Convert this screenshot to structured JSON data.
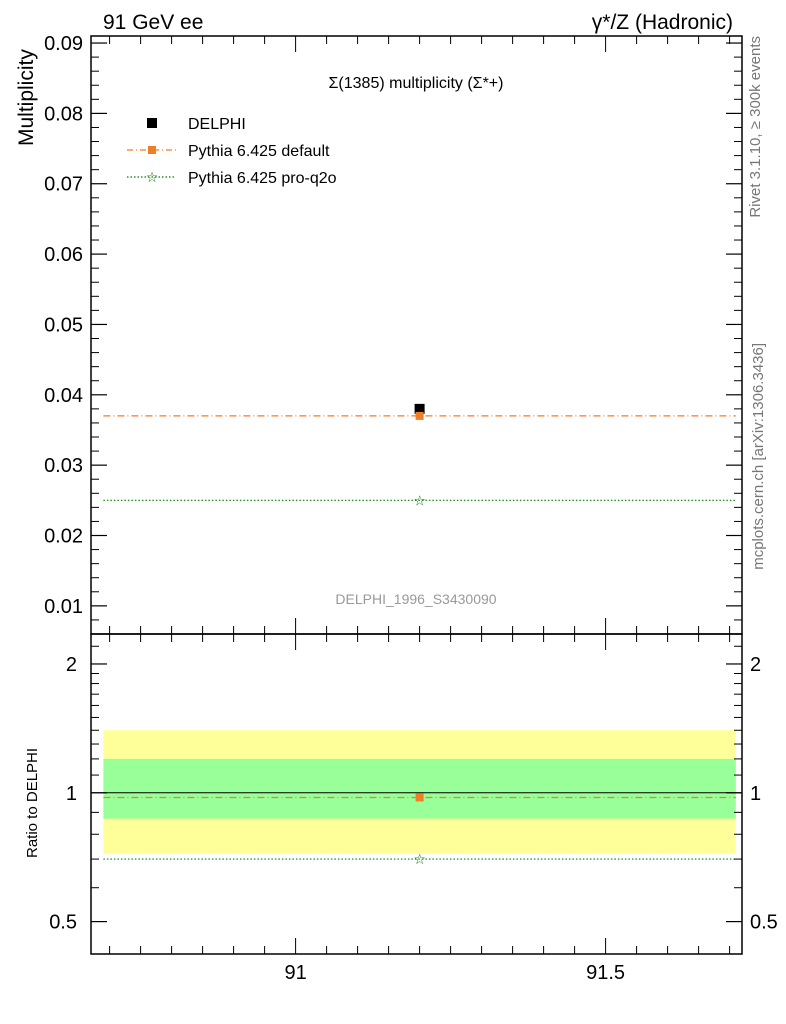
{
  "header": {
    "left": "91 GeV ee",
    "right": "γ*/Z (Hadronic)"
  },
  "side_labels": {
    "rivet": "Rivet 3.1.10, ≥ 300k events",
    "mcplots": "mcplots.cern.ch [arXiv:1306.3436]"
  },
  "colors": {
    "data": "#000000",
    "default": "#f07e26",
    "proq2o": "#008000",
    "band_inner": "#99ff99",
    "band_outer": "#ffff99"
  },
  "chart_data": [
    {
      "type": "scatter",
      "panel": "main",
      "title": "Σ(1385) multiplicity (Σ*+)",
      "analysis_label": "DELPHI_1996_S3430090",
      "ylabel": "Multiplicity",
      "xlim": [
        90.67,
        91.72
      ],
      "ylim": [
        0.006,
        0.091
      ],
      "x_ticks": [
        91,
        91.5
      ],
      "y_ticks": [
        "0.01",
        "0.02",
        "0.03",
        "0.04",
        "0.05",
        "0.06",
        "0.07",
        "0.08",
        "0.09"
      ],
      "legend_placement": "top-left",
      "series": [
        {
          "name": "DELPHI",
          "style": "square",
          "color": "#000000",
          "x": [
            91.2
          ],
          "y": [
            0.038
          ],
          "y_err": [
            0.0
          ]
        },
        {
          "name": "Pythia 6.425 default",
          "style": "dash-dot-square",
          "color": "#f07e26",
          "x": [
            91.2
          ],
          "y": [
            0.037
          ],
          "range": [
            90.69,
            91.71
          ]
        },
        {
          "name": "Pythia 6.425 pro-q2o",
          "style": "dotted-star",
          "color": "#008000",
          "x": [
            91.2
          ],
          "y": [
            0.025
          ],
          "range": [
            90.69,
            91.71
          ]
        }
      ]
    },
    {
      "type": "scatter",
      "panel": "ratio",
      "ylabel": "Ratio to DELPHI",
      "xlim": [
        90.67,
        91.72
      ],
      "ylim": [
        0.42,
        2.35
      ],
      "log_y": true,
      "y_ticks": [
        "0.5",
        "1",
        "2"
      ],
      "band_inner": [
        0.87,
        1.2
      ],
      "band_outer": [
        0.72,
        1.4
      ],
      "band_range": [
        90.69,
        91.71
      ],
      "series": [
        {
          "name": "Pythia 6.425 default",
          "color": "#f07e26",
          "x": [
            91.2
          ],
          "y": [
            0.975
          ]
        },
        {
          "name": "Pythia 6.425 pro-q2o",
          "color": "#008000",
          "x": [
            91.2
          ],
          "y": [
            0.7
          ]
        }
      ]
    }
  ]
}
